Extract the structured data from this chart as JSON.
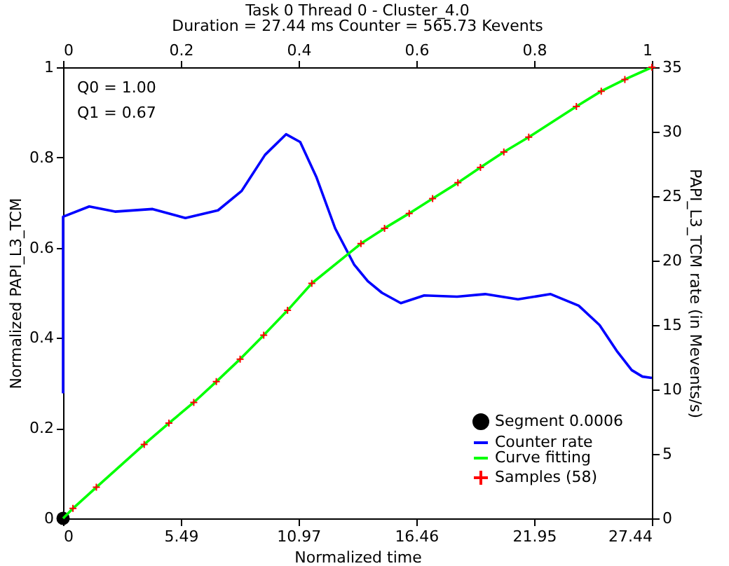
{
  "chart_data": {
    "type": "line",
    "title": "Task 0 Thread 0 - Cluster_4.0",
    "subtitle": "Duration = 27.44 ms Counter = 565.73 Kevents",
    "xlabel": "Normalized time",
    "ylabel": "Normalized PAPI_L3_TCM",
    "y2label": "PAPI_L3_TCM rate (in Mevents/s)",
    "annotations": [
      "Q0 = 1.00",
      "Q1 = 0.67"
    ],
    "xlim": [
      0,
      27.44
    ],
    "xticks": [
      0,
      5.49,
      10.97,
      16.46,
      21.95,
      27.44
    ],
    "x2lim": [
      0,
      1
    ],
    "x2ticks": [
      0,
      0.2,
      0.4,
      0.6,
      0.8,
      1
    ],
    "ylim": [
      0,
      1
    ],
    "yticks": [
      0,
      0.2,
      0.4,
      0.6,
      0.8,
      1
    ],
    "y2lim": [
      0,
      35
    ],
    "y2ticks": [
      0,
      5,
      10,
      15,
      20,
      25,
      30,
      35
    ],
    "grid": false,
    "legend": "bottom right",
    "series": [
      {
        "name": "Segment 0.0006",
        "type": "scatter",
        "marker": "circle",
        "color": "#000000",
        "x": [
          0
        ],
        "values": [
          0
        ]
      },
      {
        "name": "Counter rate",
        "type": "line",
        "marker": "none",
        "axis": "y2",
        "color": "#0000ff",
        "x": [
          0,
          0,
          1.22,
          2.42,
          4.17,
          5.7,
          7.22,
          8.32,
          9.41,
          10.39,
          11.05,
          11.8,
          12.68,
          13.56,
          14.2,
          14.86,
          15.74,
          16.83,
          18.36,
          19.67,
          21.2,
          22.72,
          24.03,
          25.0,
          25.8,
          26.5,
          27.0,
          27.44
        ],
        "values": [
          9.7,
          23.4,
          24.2,
          23.8,
          24.0,
          23.3,
          23.9,
          25.4,
          28.2,
          29.8,
          29.2,
          26.5,
          22.5,
          19.7,
          18.4,
          17.5,
          16.7,
          17.3,
          17.2,
          17.4,
          17.0,
          17.4,
          16.5,
          15.0,
          13.0,
          11.5,
          11.0,
          10.9
        ]
      },
      {
        "name": "Curve fitting",
        "type": "line",
        "marker": "none",
        "color": "#00ff00",
        "x": [
          0,
          0.46,
          1.55,
          3.78,
          4.93,
          6.09,
          7.14,
          8.25,
          9.35,
          10.46,
          11.59,
          13.88,
          14.98,
          16.13,
          17.22,
          18.4,
          19.45,
          20.54,
          21.7,
          23.92,
          25.08,
          26.18,
          27.44
        ],
        "values": [
          0,
          0.022,
          0.069,
          0.164,
          0.211,
          0.257,
          0.303,
          0.353,
          0.406,
          0.461,
          0.521,
          0.609,
          0.643,
          0.676,
          0.709,
          0.744,
          0.778,
          0.812,
          0.845,
          0.913,
          0.947,
          0.973,
          1.0
        ]
      },
      {
        "name": "Samples (58)",
        "type": "scatter",
        "marker": "cross",
        "color": "#ff0000",
        "x": [
          0.46,
          1.55,
          3.78,
          4.93,
          6.09,
          7.14,
          8.25,
          9.35,
          10.46,
          11.59,
          13.88,
          14.98,
          16.13,
          17.22,
          18.4,
          19.45,
          20.54,
          21.7,
          23.92,
          25.08,
          26.18,
          27.44
        ],
        "values": [
          0.022,
          0.069,
          0.164,
          0.211,
          0.257,
          0.303,
          0.353,
          0.406,
          0.461,
          0.521,
          0.609,
          0.643,
          0.676,
          0.709,
          0.744,
          0.778,
          0.812,
          0.845,
          0.913,
          0.947,
          0.973,
          1.0
        ]
      }
    ]
  }
}
